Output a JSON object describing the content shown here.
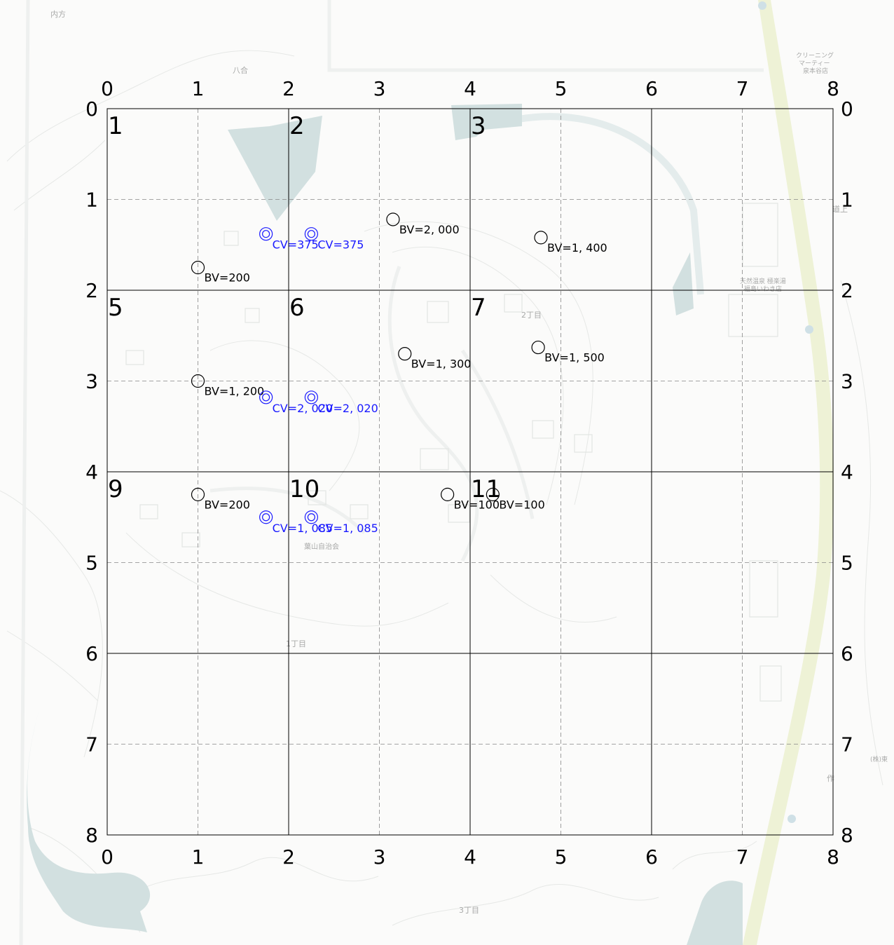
{
  "map": {
    "basemap_labels": [
      {
        "id": "uchikata",
        "text": "内方"
      },
      {
        "id": "yago",
        "text": "八合"
      },
      {
        "id": "cleaning",
        "text": "クリーニング"
      },
      {
        "id": "cleaning2",
        "text": "マーティー"
      },
      {
        "id": "cleaning3",
        "text": "泉本谷店"
      },
      {
        "id": "onsen1",
        "text": "天然温泉 極楽湯"
      },
      {
        "id": "onsen2",
        "text": "福島いわき店"
      },
      {
        "id": "chome2",
        "text": "2丁目"
      },
      {
        "id": "chome1",
        "text": "1丁目"
      },
      {
        "id": "chome3",
        "text": "3丁目"
      },
      {
        "id": "jichikai",
        "text": "葉山自治会"
      },
      {
        "id": "kabu",
        "text": "(株)東"
      },
      {
        "id": "saku",
        "text": "作"
      },
      {
        "id": "michi",
        "text": "道上"
      }
    ],
    "grid": {
      "top_ticks": [
        "0",
        "1",
        "2",
        "3",
        "4",
        "5",
        "6",
        "7",
        "8"
      ],
      "side_ticks": [
        "0",
        "1",
        "2",
        "3",
        "4",
        "5",
        "6",
        "7",
        "8"
      ],
      "cell_numbers": [
        "1",
        "2",
        "3",
        "5",
        "6",
        "7",
        "9",
        "10",
        "11"
      ]
    },
    "points": [
      {
        "type": "BV",
        "x": 1.0,
        "y": 1.75,
        "label": "BV=200"
      },
      {
        "type": "BV",
        "x": 3.15,
        "y": 1.22,
        "label": "BV=2, 000"
      },
      {
        "type": "BV",
        "x": 4.78,
        "y": 1.42,
        "label": "BV=1, 400"
      },
      {
        "type": "BV",
        "x": 1.0,
        "y": 3.0,
        "label": "BV=1, 200"
      },
      {
        "type": "BV",
        "x": 3.28,
        "y": 2.7,
        "label": "BV=1, 300"
      },
      {
        "type": "BV",
        "x": 4.75,
        "y": 2.63,
        "label": "BV=1, 500"
      },
      {
        "type": "BV",
        "x": 1.0,
        "y": 4.25,
        "label": "BV=200"
      },
      {
        "type": "BV",
        "x": 3.75,
        "y": 4.25,
        "label": "BV=100"
      },
      {
        "type": "BV",
        "x": 4.25,
        "y": 4.25,
        "label": "BV=100"
      },
      {
        "type": "CV",
        "x": 1.75,
        "y": 1.38,
        "label": "CV=375"
      },
      {
        "type": "CV",
        "x": 2.25,
        "y": 1.38,
        "label": "CV=375"
      },
      {
        "type": "CV",
        "x": 1.75,
        "y": 3.18,
        "label": "CV=2, 020"
      },
      {
        "type": "CV",
        "x": 2.25,
        "y": 3.18,
        "label": "CV=2, 020"
      },
      {
        "type": "CV",
        "x": 1.75,
        "y": 4.5,
        "label": "CV=1, 085"
      },
      {
        "type": "CV",
        "x": 2.25,
        "y": 4.5,
        "label": "CV=1, 085"
      }
    ],
    "colors": {
      "bv": "#000000",
      "cv": "#1a1aff",
      "water": "#d2e0e0",
      "road": "#eef2d6",
      "grid": "#000000"
    }
  }
}
